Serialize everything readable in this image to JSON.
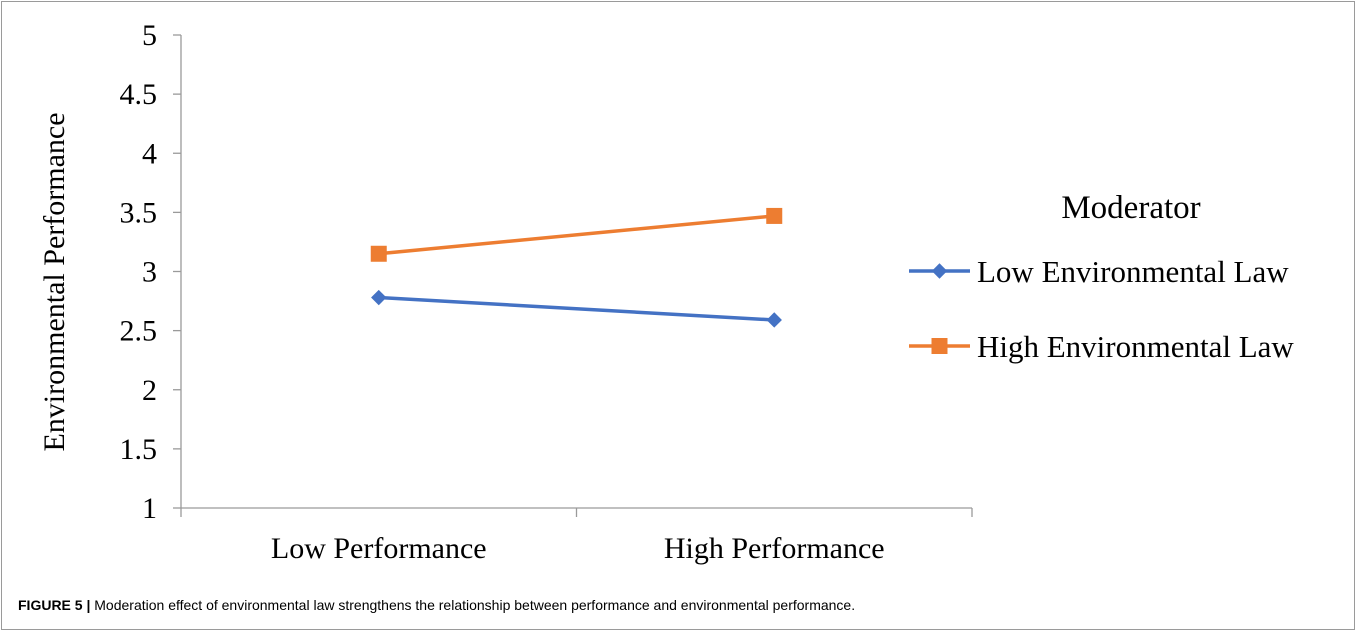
{
  "chart_data": {
    "type": "line",
    "categories": [
      "Low Performance",
      "High Performance"
    ],
    "ylabel": "Environmental Performance",
    "xlabel": "",
    "ylim": [
      1,
      5
    ],
    "yticks": [
      "1",
      "1.5",
      "2",
      "2.5",
      "3",
      "3.5",
      "4",
      "4.5",
      "5"
    ],
    "legend_title": "Moderator",
    "legend_position": "right",
    "grid": false,
    "series": [
      {
        "name": "Low Environmental Law",
        "values": [
          2.78,
          2.59
        ],
        "color": "#4472C4",
        "marker": "diamond"
      },
      {
        "name": "High Environmental Law",
        "values": [
          3.15,
          3.47
        ],
        "color": "#ED7D31",
        "marker": "square"
      }
    ]
  },
  "caption": {
    "label": "FIGURE 5 |",
    "text": " Moderation effect of environmental law strengthens the relationship between performance and environmental performance."
  }
}
